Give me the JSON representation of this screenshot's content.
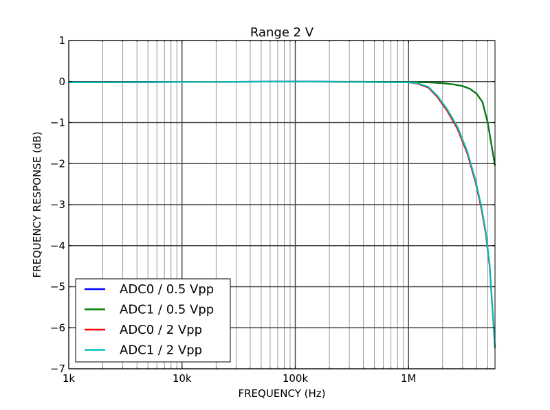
{
  "chart_data": {
    "type": "line",
    "title": "Range 2 V",
    "xlabel": "FREQUENCY (Hz)",
    "ylabel": "FREQUENCY RESPONSE (dB)",
    "x_scale": "log",
    "xlim": [
      1000,
      5800000
    ],
    "ylim": [
      -7,
      1
    ],
    "x_ticks": [
      {
        "value": 1000,
        "label": "1k"
      },
      {
        "value": 10000,
        "label": "10k"
      },
      {
        "value": 100000,
        "label": "100k"
      },
      {
        "value": 1000000,
        "label": "1M"
      }
    ],
    "y_ticks": [
      {
        "value": 1,
        "label": "1"
      },
      {
        "value": 0,
        "label": "0"
      },
      {
        "value": -1,
        "label": "−1"
      },
      {
        "value": -2,
        "label": "−2"
      },
      {
        "value": -3,
        "label": "−3"
      },
      {
        "value": -4,
        "label": "−4"
      },
      {
        "value": -5,
        "label": "−5"
      },
      {
        "value": -6,
        "label": "−6"
      },
      {
        "value": -7,
        "label": "−7"
      }
    ],
    "grid": true,
    "legend_position": "lower-left",
    "series": [
      {
        "name": "ADC0 / 0.5 Vpp",
        "color": "#0000ff",
        "x": [
          1000,
          10000,
          100000,
          1000000,
          1500000,
          2000000,
          2500000,
          3000000,
          3500000,
          4000000,
          4500000,
          5000000,
          5800000
        ],
        "y": [
          -0.02,
          -0.01,
          0.0,
          -0.01,
          -0.02,
          -0.04,
          -0.07,
          -0.11,
          -0.18,
          -0.3,
          -0.5,
          -1.0,
          -2.05
        ]
      },
      {
        "name": "ADC1 / 0.5 Vpp",
        "color": "#008000",
        "x": [
          1000,
          10000,
          100000,
          1000000,
          1500000,
          2000000,
          2500000,
          3000000,
          3500000,
          4000000,
          4500000,
          5000000,
          5800000
        ],
        "y": [
          -0.02,
          -0.01,
          0.0,
          -0.01,
          -0.02,
          -0.04,
          -0.07,
          -0.11,
          -0.18,
          -0.3,
          -0.5,
          -1.0,
          -2.05
        ]
      },
      {
        "name": "ADC0 / 2 Vpp",
        "color": "#ff0000",
        "x": [
          1000,
          10000,
          100000,
          1000000,
          1200000,
          1500000,
          1800000,
          2200000,
          2700000,
          3300000,
          3900000,
          4400000,
          4800000,
          5200000,
          5800000
        ],
        "y": [
          -0.02,
          -0.01,
          0.0,
          -0.02,
          -0.05,
          -0.15,
          -0.38,
          -0.72,
          -1.15,
          -1.75,
          -2.45,
          -3.1,
          -3.7,
          -4.5,
          -6.5
        ]
      },
      {
        "name": "ADC1 / 2 Vpp",
        "color": "#00bfbf",
        "x": [
          1000,
          10000,
          100000,
          1000000,
          1200000,
          1500000,
          1800000,
          2200000,
          2700000,
          3300000,
          3900000,
          4400000,
          4800000,
          5200000,
          5800000
        ],
        "y": [
          -0.02,
          -0.01,
          0.0,
          -0.02,
          -0.04,
          -0.13,
          -0.35,
          -0.68,
          -1.1,
          -1.7,
          -2.4,
          -3.05,
          -3.65,
          -4.45,
          -6.5
        ]
      }
    ]
  }
}
